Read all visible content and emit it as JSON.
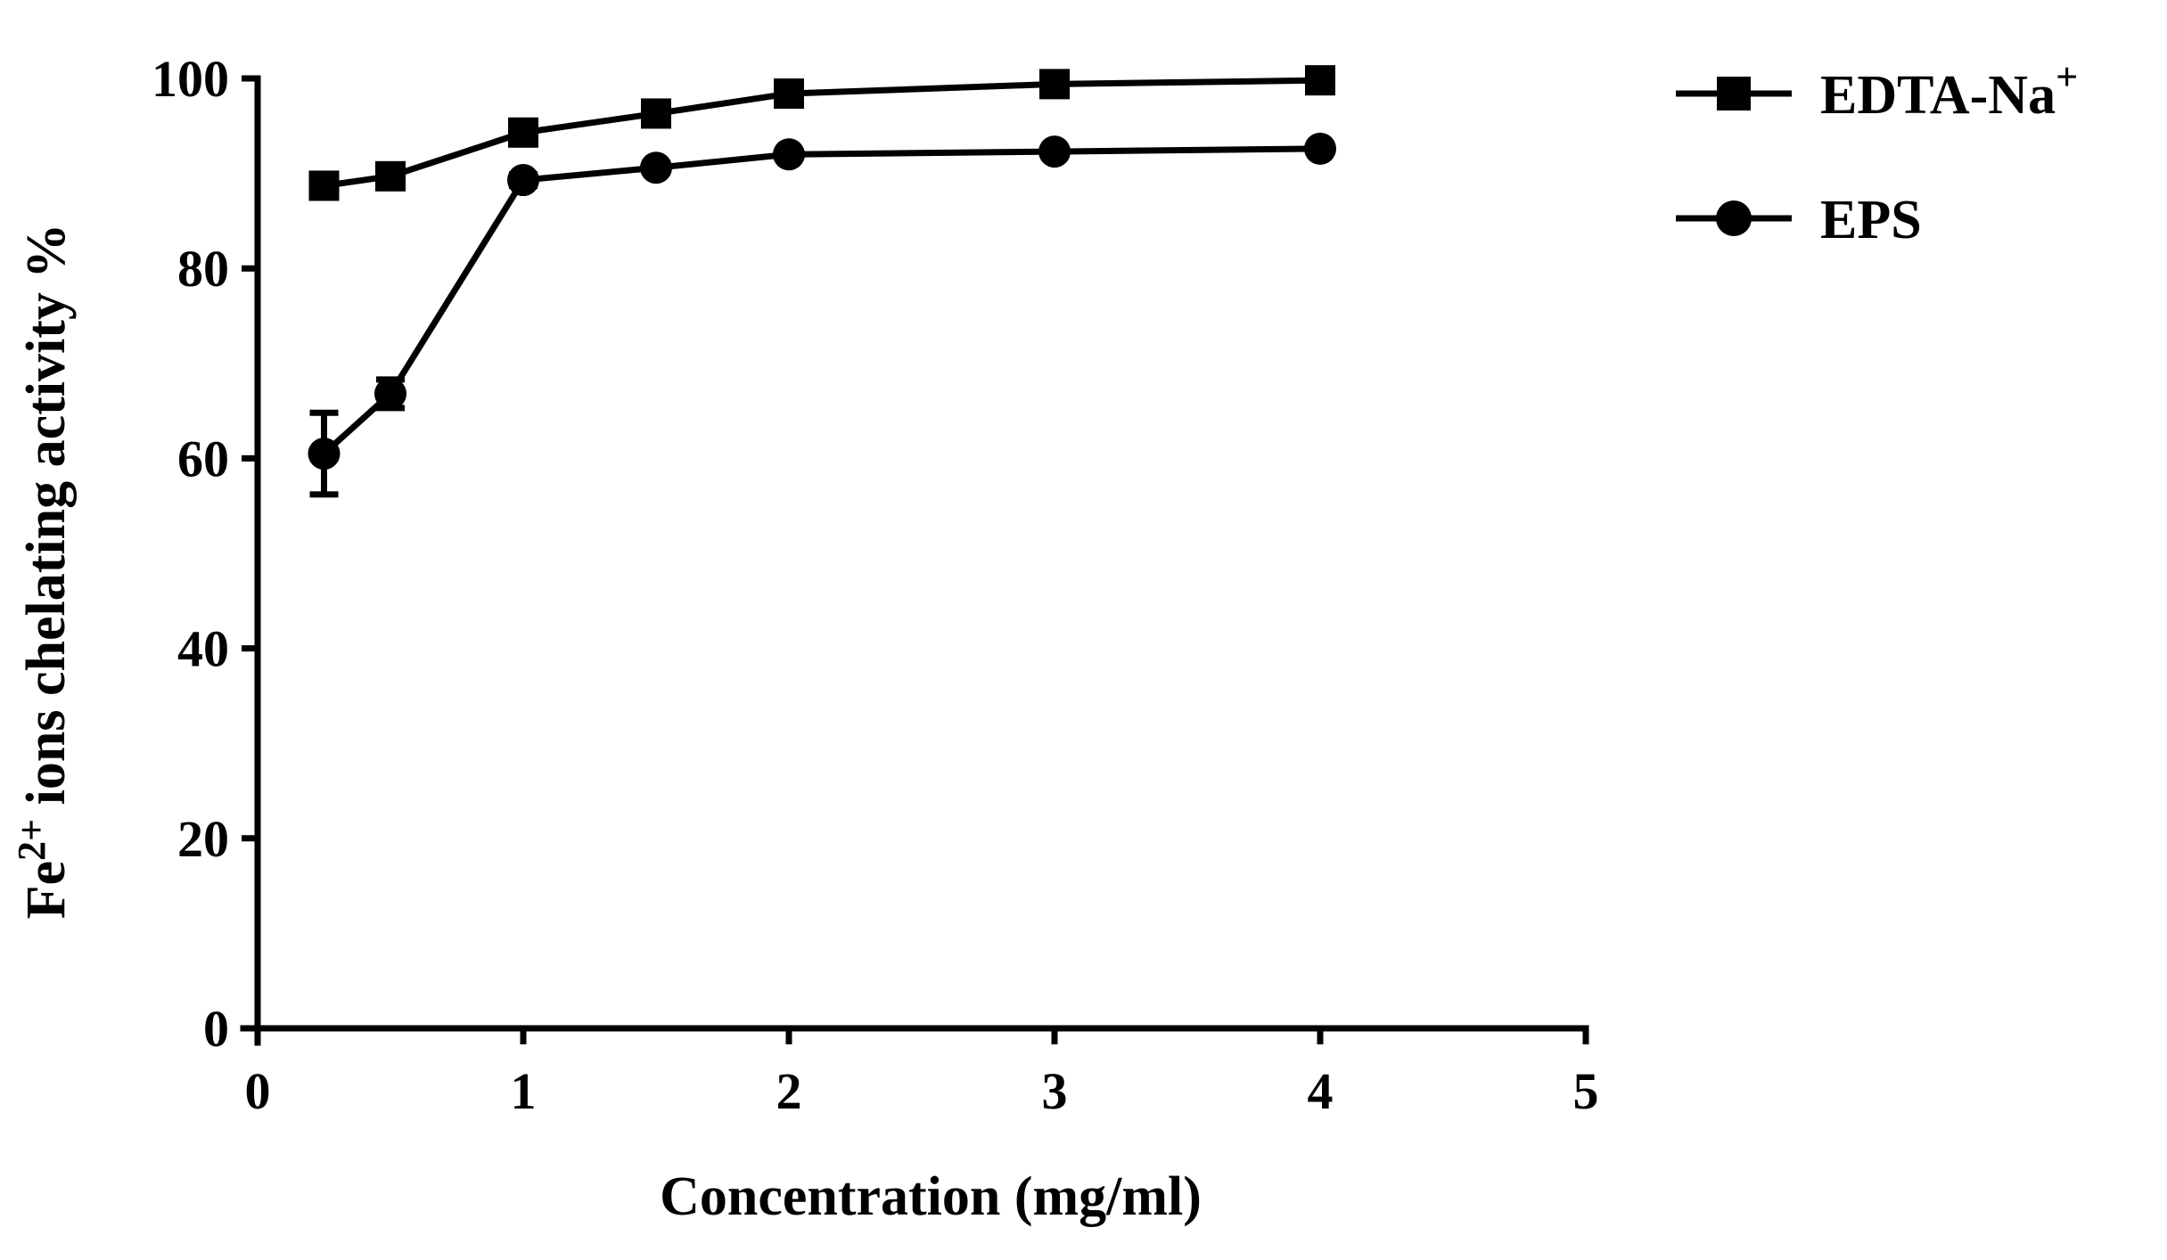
{
  "chart_data": {
    "type": "line",
    "title": "",
    "xlabel": "Concentration (mg/ml)",
    "ylabel": {
      "prefix": "Fe",
      "superscript": "2+",
      "suffix": " ions chelating activity %"
    },
    "xlim": [
      0,
      5
    ],
    "ylim": [
      0,
      100
    ],
    "xticks": [
      "0",
      "1",
      "2",
      "3",
      "4",
      "5"
    ],
    "yticks": [
      "0",
      "20",
      "40",
      "60",
      "80",
      "100"
    ],
    "xtick_values": [
      0,
      1,
      2,
      3,
      4,
      5
    ],
    "ytick_values": [
      0,
      20,
      40,
      60,
      80,
      100
    ],
    "grid": false,
    "legend_position": "top-right outside",
    "series": [
      {
        "name": "EDTA-Na",
        "name_superscript": "+",
        "marker": "square",
        "x": [
          0.25,
          0.5,
          1,
          1.5,
          2,
          3,
          4
        ],
        "y": [
          88.7,
          89.7,
          94.3,
          96.3,
          98.4,
          99.4,
          99.8
        ],
        "err": [
          0.8,
          0.6,
          0.5,
          0.4,
          0.4,
          0.3,
          0.3
        ]
      },
      {
        "name": "EPS",
        "name_superscript": "",
        "marker": "circle",
        "x": [
          0.25,
          0.5,
          1,
          1.5,
          2,
          3,
          4
        ],
        "y": [
          60.5,
          66.8,
          89.3,
          90.6,
          92.0,
          92.3,
          92.6
        ],
        "err": [
          4.3,
          1.5,
          0.6,
          0.5,
          0.4,
          0.4,
          0.4
        ]
      }
    ]
  }
}
